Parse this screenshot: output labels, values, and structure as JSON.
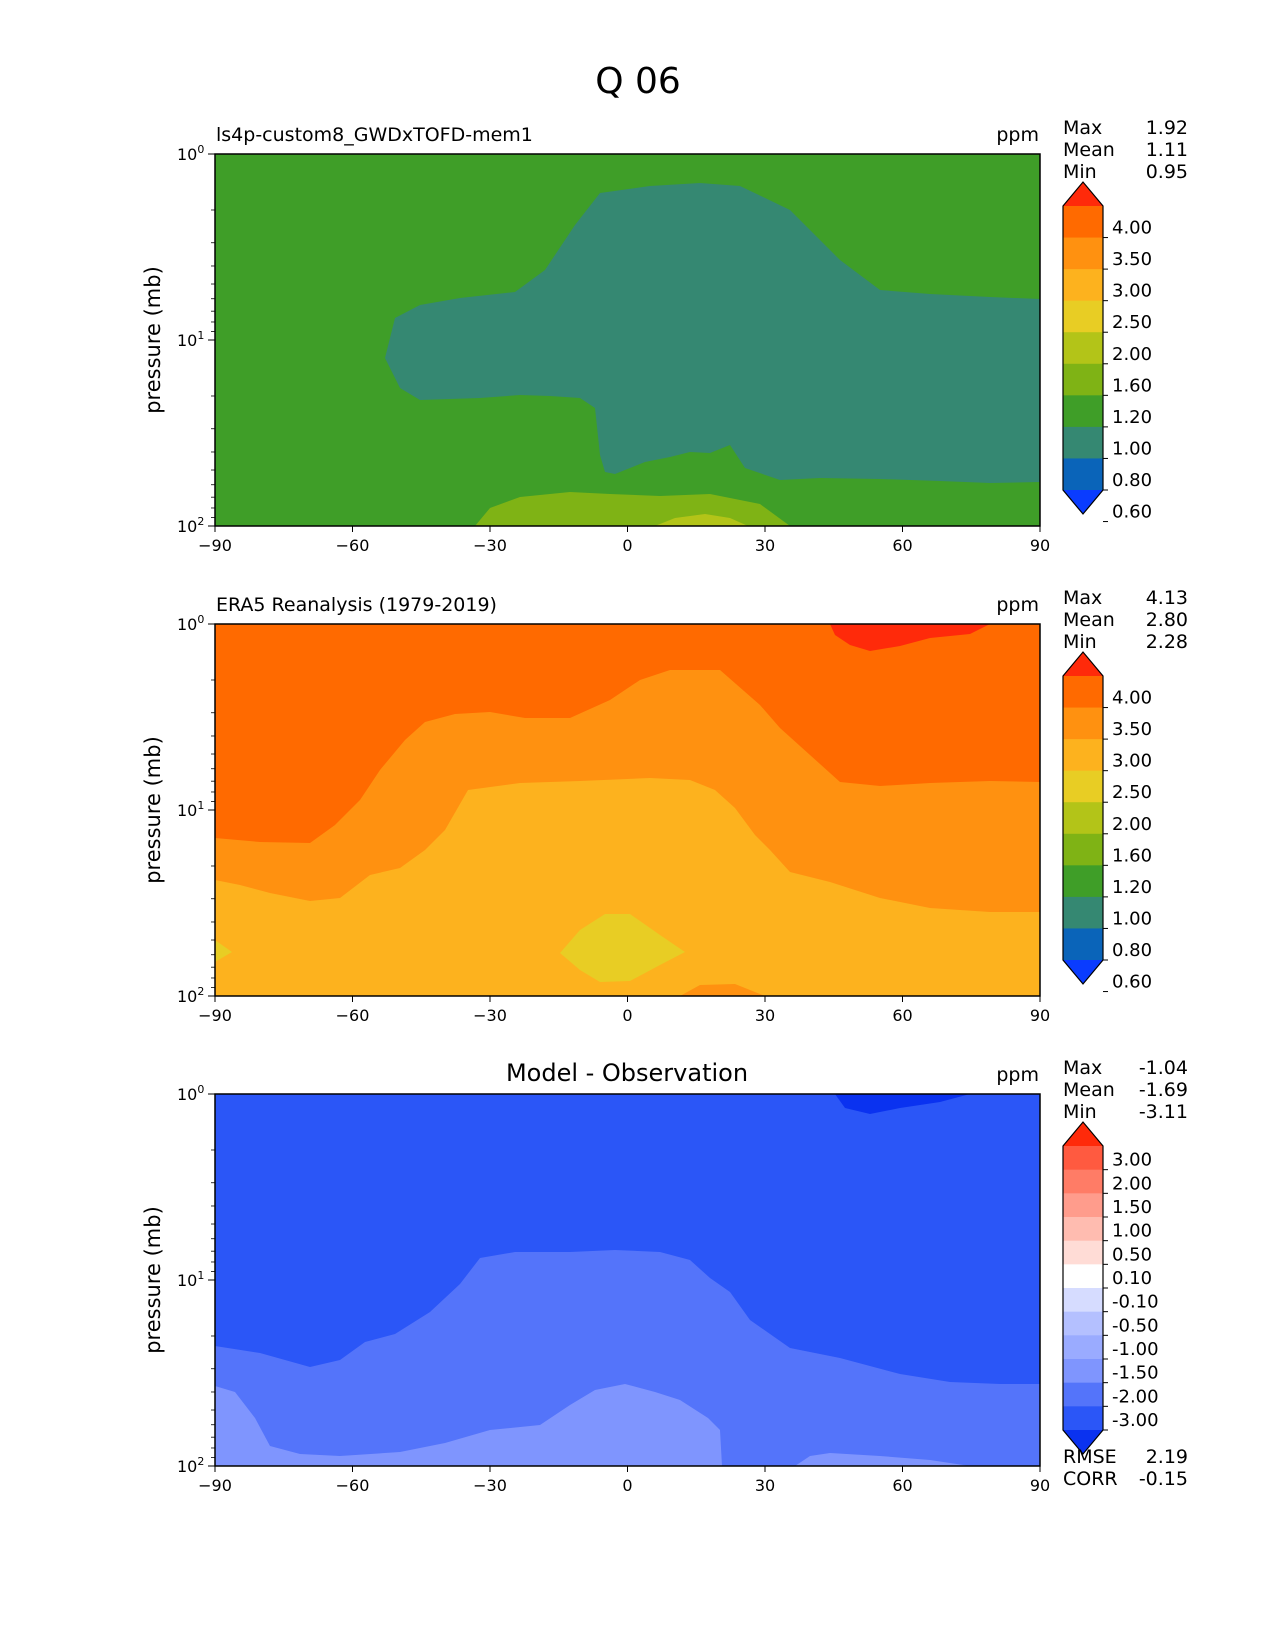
{
  "figure": {
    "title": "Q 06"
  },
  "chart_data": [
    {
      "type": "heatmap",
      "title": "ls4p-custom8_GWDxTOFD-mem1",
      "units": "ppm",
      "ylabel": "pressure (mb)",
      "xlabel": "",
      "xlim": [
        -90,
        90
      ],
      "ylim": [
        100,
        1
      ],
      "xticks": [
        "−90",
        "−60",
        "−30",
        "0",
        "30",
        "60",
        "90"
      ],
      "yticks": [
        {
          "base": "10",
          "exp": "0"
        },
        {
          "base": "10",
          "exp": "1"
        },
        {
          "base": "10",
          "exp": "2"
        }
      ],
      "stats": [
        {
          "label": "Max",
          "value": "1.92"
        },
        {
          "label": "Mean",
          "value": "1.11"
        },
        {
          "label": "Min",
          "value": "0.95"
        }
      ],
      "colorbar": {
        "levels": [
          "4.00",
          "3.50",
          "3.00",
          "2.50",
          "2.00",
          "1.60",
          "1.20",
          "1.00",
          "0.80",
          "0.60"
        ],
        "colors": [
          "#ff2a0a",
          "#ff6a00",
          "#ff9110",
          "#fdb21e",
          "#e8cd24",
          "#b3c418",
          "#7fb315",
          "#3f9e28",
          "#358872",
          "#0a64b9",
          "#0a3cff"
        ]
      },
      "field": [
        {
          "name": "background",
          "range": "1.00-1.20",
          "color": "#3f9e28"
        },
        {
          "name": "upper-core",
          "range": "0.80-1.00",
          "color": "#358872"
        },
        {
          "name": "lower-band",
          "range": "1.20-1.60",
          "color": "#7fb315"
        },
        {
          "name": "lower-core",
          "range": "1.60-2.00",
          "color": "#b3c418"
        }
      ]
    },
    {
      "type": "heatmap",
      "title": "ERA5 Reanalysis (1979-2019)",
      "units": "ppm",
      "ylabel": "pressure (mb)",
      "xlabel": "",
      "xlim": [
        -90,
        90
      ],
      "ylim": [
        100,
        1
      ],
      "xticks": [
        "−90",
        "−60",
        "−30",
        "0",
        "30",
        "60",
        "90"
      ],
      "yticks": [
        {
          "base": "10",
          "exp": "0"
        },
        {
          "base": "10",
          "exp": "1"
        },
        {
          "base": "10",
          "exp": "2"
        }
      ],
      "stats": [
        {
          "label": "Max",
          "value": "4.13"
        },
        {
          "label": "Mean",
          "value": "2.80"
        },
        {
          "label": "Min",
          "value": "2.28"
        }
      ],
      "colorbar": {
        "levels": [
          "4.00",
          "3.50",
          "3.00",
          "2.50",
          "2.00",
          "1.60",
          "1.20",
          "1.00",
          "0.80",
          "0.60"
        ],
        "colors": [
          "#ff2a0a",
          "#ff6a00",
          "#ff9110",
          "#fdb21e",
          "#e8cd24",
          "#b3c418",
          "#7fb315",
          "#3f9e28",
          "#358872",
          "#0a64b9",
          "#0a3cff"
        ]
      },
      "field": [
        {
          "name": "background",
          "range": "3.50-4.00",
          "color": "#ff6a00"
        },
        {
          "name": "mid-band",
          "range": "3.00-3.50",
          "color": "#ff9110"
        },
        {
          "name": "core",
          "range": "2.50-3.00",
          "color": "#fdb21e"
        },
        {
          "name": "min-blob",
          "range": "2.00-2.50",
          "color": "#e8cd24"
        },
        {
          "name": "top-max",
          "range": ">4.00",
          "color": "#ff2a0a"
        }
      ]
    },
    {
      "type": "heatmap",
      "title": "Model - Observation",
      "units": "ppm",
      "ylabel": "pressure (mb)",
      "xlabel": "",
      "xlim": [
        -90,
        90
      ],
      "ylim": [
        100,
        1
      ],
      "xticks": [
        "−90",
        "−60",
        "−30",
        "0",
        "30",
        "60",
        "90"
      ],
      "yticks": [
        {
          "base": "10",
          "exp": "0"
        },
        {
          "base": "10",
          "exp": "1"
        },
        {
          "base": "10",
          "exp": "2"
        }
      ],
      "stats": [
        {
          "label": "Max",
          "value": "-1.04"
        },
        {
          "label": "Mean",
          "value": "-1.69"
        },
        {
          "label": "Min",
          "value": "-3.11"
        }
      ],
      "colorbar": {
        "levels": [
          "3.00",
          "2.00",
          "1.50",
          "1.00",
          "0.50",
          "0.10",
          "-0.10",
          "-0.50",
          "-1.00",
          "-1.50",
          "-2.00",
          "-3.00"
        ],
        "colors": [
          "#ff2a0a",
          "#ff5a40",
          "#ff7c66",
          "#ff9c8c",
          "#ffbcb0",
          "#ffdcd6",
          "#ffffff",
          "#d6dcff",
          "#b4c0ff",
          "#9aabff",
          "#7f95fe",
          "#5474fa",
          "#2b56f7",
          "#0a32f0"
        ]
      },
      "field": [
        {
          "name": "background",
          "range": "-3.00 to -2.00",
          "color": "#2b56f7"
        },
        {
          "name": "mid-band",
          "range": "-2.00 to -1.50",
          "color": "#5474fa"
        },
        {
          "name": "low-core",
          "range": "-1.50 to -1.00",
          "color": "#7f95fe"
        },
        {
          "name": "top-min",
          "range": "< -3.00",
          "color": "#0a32f0"
        }
      ],
      "scores": [
        {
          "label": "RMSE",
          "value": "2.19"
        },
        {
          "label": "CORR",
          "value": "-0.15"
        }
      ]
    }
  ]
}
